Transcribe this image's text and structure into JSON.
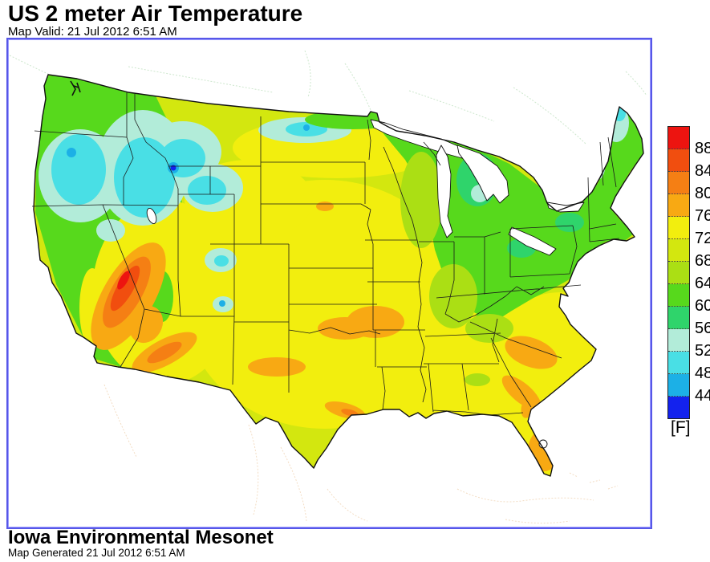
{
  "header": {
    "title": "US 2 meter Air Temperature",
    "valid_line": "Map Valid: 21 Jul 2012 6:51 AM"
  },
  "colorbar": {
    "unit_label": "[F]",
    "ticks": [
      "88",
      "84",
      "80",
      "76",
      "72",
      "68",
      "64",
      "60",
      "56",
      "52",
      "48",
      "44"
    ],
    "colors": [
      "#ed1410",
      "#f14e0f",
      "#f57f14",
      "#f8a913",
      "#f2ee0e",
      "#d3e70f",
      "#abdf14",
      "#57d91c",
      "#2fd46b",
      "#b2ecd9",
      "#49dfe5",
      "#1cb0e6",
      "#1322ee"
    ]
  },
  "map": {
    "frame_color": "#5757e8",
    "coast_border_color": "#111111",
    "state_border_color": "#1a1a1a",
    "lake_fill_color": "#ffffff",
    "canada_outline_color": "#cde7cd",
    "mexico_outline_color": "#f3ddc4"
  },
  "footer": {
    "credit_line": "Iowa Environmental Mesonet",
    "generated_line": "Map Generated 21 Jul 2012 6:51 AM"
  }
}
